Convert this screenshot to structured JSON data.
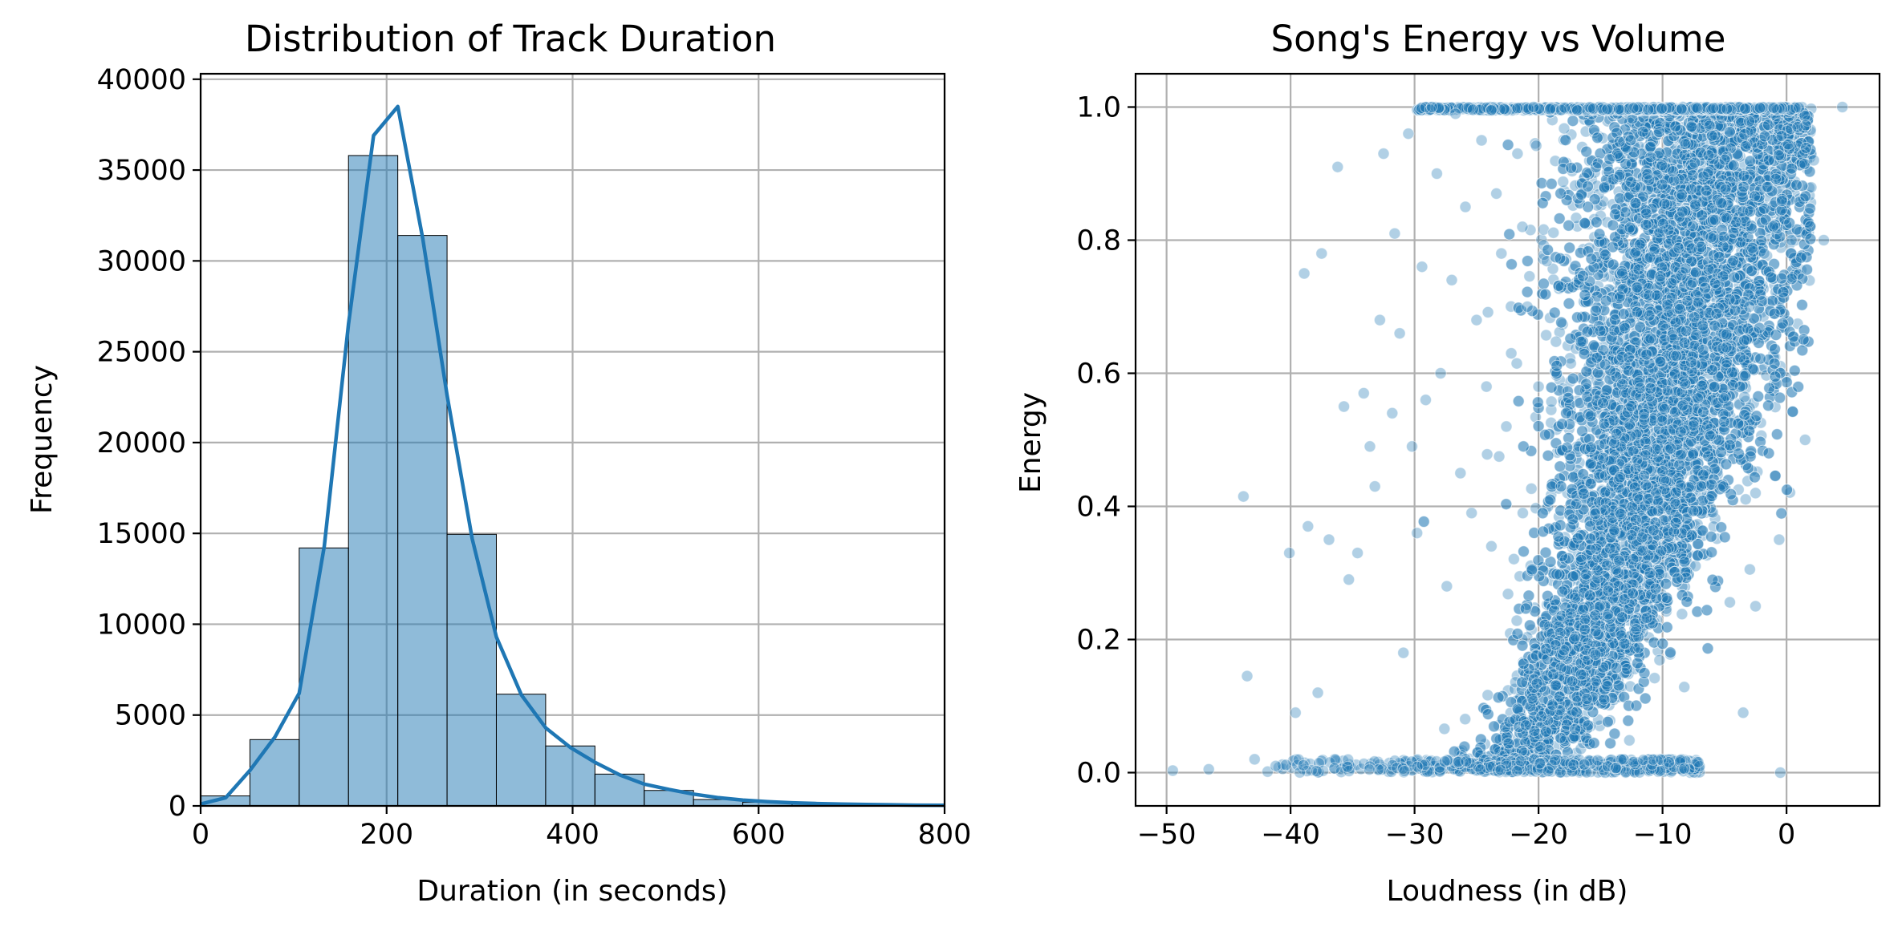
{
  "chart_data": [
    {
      "type": "bar",
      "title": "Distribution of Track Duration",
      "xlabel": "Duration (in seconds)",
      "ylabel": "Frequency",
      "xlim": [
        0,
        800
      ],
      "ylim": [
        0,
        40300
      ],
      "xticks": [
        0,
        200,
        400,
        600,
        800
      ],
      "yticks": [
        0,
        5000,
        10000,
        15000,
        20000,
        25000,
        30000,
        35000,
        40000
      ],
      "grid": true,
      "bins": [
        {
          "x0": 0,
          "x1": 53,
          "value": 550
        },
        {
          "x0": 53,
          "x1": 106,
          "value": 3650
        },
        {
          "x0": 106,
          "x1": 159,
          "value": 14200
        },
        {
          "x0": 159,
          "x1": 212,
          "value": 35800
        },
        {
          "x0": 212,
          "x1": 265,
          "value": 31400
        },
        {
          "x0": 265,
          "x1": 318,
          "value": 14950
        },
        {
          "x0": 318,
          "x1": 371,
          "value": 6150
        },
        {
          "x0": 371,
          "x1": 424,
          "value": 3300
        },
        {
          "x0": 424,
          "x1": 477,
          "value": 1750
        },
        {
          "x0": 477,
          "x1": 530,
          "value": 850
        },
        {
          "x0": 530,
          "x1": 583,
          "value": 350
        },
        {
          "x0": 583,
          "x1": 636,
          "value": 200
        },
        {
          "x0": 636,
          "x1": 689,
          "value": 120
        },
        {
          "x0": 689,
          "x1": 742,
          "value": 80
        },
        {
          "x0": 742,
          "x1": 800,
          "value": 50
        }
      ],
      "kde": {
        "x": [
          0,
          27,
          53,
          80,
          106,
          133,
          159,
          186,
          212,
          239,
          265,
          292,
          318,
          345,
          371,
          398,
          424,
          451,
          477,
          504,
          530,
          557,
          583,
          610,
          636,
          663,
          689,
          716,
          742,
          769,
          800
        ],
        "y": [
          100,
          450,
          1950,
          3800,
          6200,
          14300,
          26500,
          36900,
          38500,
          31200,
          22600,
          14700,
          9300,
          6100,
          4300,
          3200,
          2400,
          1700,
          1200,
          900,
          650,
          450,
          320,
          230,
          170,
          130,
          100,
          80,
          60,
          40,
          30
        ]
      }
    },
    {
      "type": "scatter",
      "title": "Song's Energy vs Volume",
      "xlabel": "Loudness (in dB)",
      "ylabel": "Energy",
      "xlim": [
        -52.5,
        7.5
      ],
      "ylim": [
        -0.05,
        1.05
      ],
      "xticks": [
        -50,
        -40,
        -30,
        -20,
        -10,
        0
      ],
      "xtick_labels": [
        "−50",
        "−40",
        "−30",
        "−20",
        "−10",
        "0"
      ],
      "yticks": [
        0.0,
        0.2,
        0.4,
        0.6,
        0.8,
        1.0
      ],
      "ytick_labels": [
        "0.0",
        "0.2",
        "0.4",
        "0.6",
        "0.8",
        "1.0"
      ],
      "grid": true,
      "points": [
        [
          -49.5,
          0.003
        ],
        [
          -46.6,
          0.005
        ],
        [
          -43.8,
          0.415
        ],
        [
          -43.5,
          0.145
        ],
        [
          -42.9,
          0.02
        ],
        [
          -41.2,
          0.01
        ],
        [
          -40.1,
          0.33
        ],
        [
          -39.6,
          0.09
        ],
        [
          -38.9,
          0.75
        ],
        [
          -38.6,
          0.37
        ],
        [
          -37.8,
          0.12
        ],
        [
          -37.5,
          0.78
        ],
        [
          -36.9,
          0.35
        ],
        [
          -36.2,
          0.91
        ],
        [
          -35.7,
          0.55
        ],
        [
          -35.3,
          0.29
        ],
        [
          -34.6,
          0.33
        ],
        [
          -34.1,
          0.57
        ],
        [
          -33.6,
          0.49
        ],
        [
          -33.2,
          0.43
        ],
        [
          -32.8,
          0.68
        ],
        [
          -32.5,
          0.93
        ],
        [
          -31.8,
          0.54
        ],
        [
          -31.6,
          0.81
        ],
        [
          -31.2,
          0.66
        ],
        [
          -30.9,
          0.18
        ],
        [
          -30.5,
          0.96
        ],
        [
          -30.2,
          0.49
        ],
        [
          -29.8,
          0.36
        ],
        [
          -29.4,
          0.76
        ],
        [
          -29.1,
          0.56
        ],
        [
          -28.6,
          1.0
        ],
        [
          -28.2,
          0.9
        ],
        [
          -27.9,
          0.6
        ],
        [
          -27.4,
          0.28
        ],
        [
          -27.0,
          0.74
        ],
        [
          -26.7,
          0.99
        ],
        [
          -26.3,
          0.45
        ],
        [
          -25.9,
          0.85
        ],
        [
          -25.4,
          0.39
        ],
        [
          -25.0,
          0.68
        ],
        [
          -24.6,
          0.95
        ],
        [
          -24.2,
          0.58
        ],
        [
          -23.8,
          0.34
        ],
        [
          -23.4,
          0.87
        ],
        [
          -23.0,
          0.78
        ],
        [
          -22.6,
          0.52
        ],
        [
          -22.2,
          0.63
        ],
        [
          -21.7,
          0.93
        ],
        [
          -21.3,
          0.82
        ],
        [
          -20.9,
          0.7
        ],
        [
          -20.4,
          1.0
        ],
        [
          -20.0,
          0.58
        ],
        [
          -3.0,
          0.7
        ],
        [
          -2.5,
          0.42
        ],
        [
          -1.8,
          0.78
        ],
        [
          -1.5,
          0.88
        ],
        [
          -0.6,
          0.35
        ],
        [
          0.4,
          0.8
        ],
        [
          0.9,
          0.97
        ],
        [
          1.5,
          0.5
        ],
        [
          2.2,
          0.92
        ],
        [
          3.0,
          0.8
        ],
        [
          4.5,
          1.0
        ],
        [
          -0.5,
          0.0
        ],
        [
          -2.5,
          0.25
        ],
        [
          -3.5,
          0.09
        ]
      ]
    }
  ]
}
